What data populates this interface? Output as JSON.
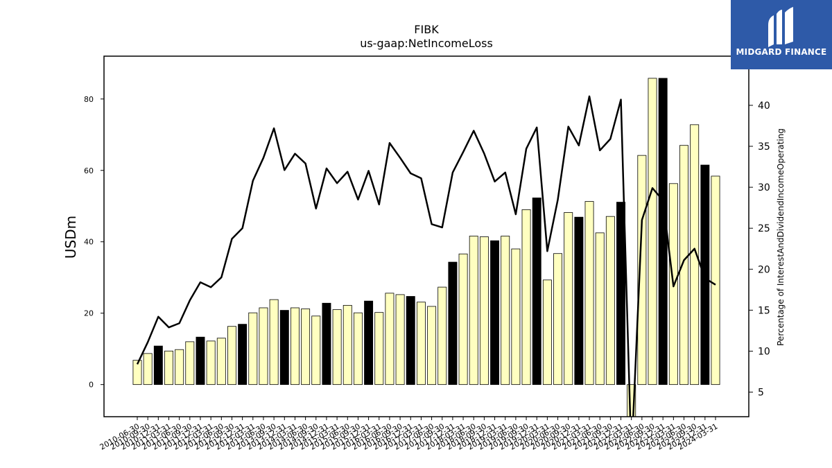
{
  "logo": {
    "text": "MIDGARD FINANCE"
  },
  "chart_data": {
    "type": "bar",
    "title": "FIBK",
    "subtitle": "us-gaap:NetIncomeLoss",
    "ylabel": "USDm",
    "ylabel_right": "Percentage of InterestAndDividendIncomeOperating",
    "ylim": [
      -9,
      92
    ],
    "ylim_right": [
      2,
      46
    ],
    "yticks": [
      0,
      20,
      40,
      60,
      80
    ],
    "yticks_right": [
      5,
      10,
      15,
      20,
      25,
      30,
      35,
      40
    ],
    "grid": false,
    "categories": [
      "2010-06-30",
      "2010-09-30",
      "2010-12-31",
      "2011-03-31",
      "2011-06-30",
      "2011-09-30",
      "2011-12-31",
      "2012-03-31",
      "2012-06-30",
      "2012-09-30",
      "2012-12-31",
      "2013-03-31",
      "2013-06-30",
      "2013-09-30",
      "2013-12-31",
      "2014-03-31",
      "2014-06-30",
      "2014-09-30",
      "2014-12-31",
      "2015-03-31",
      "2015-06-30",
      "2015-09-30",
      "2015-12-31",
      "2016-03-31",
      "2016-06-30",
      "2016-09-30",
      "2016-12-31",
      "2017-03-31",
      "2017-06-30",
      "2017-09-30",
      "2017-12-31",
      "2018-03-31",
      "2018-06-30",
      "2018-09-30",
      "2018-12-31",
      "2019-03-31",
      "2019-06-30",
      "2019-09-30",
      "2019-12-31",
      "2020-03-31",
      "2020-06-30",
      "2020-09-30",
      "2020-12-31",
      "2021-03-31",
      "2021-06-30",
      "2021-09-30",
      "2021-12-31",
      "2022-03-31",
      "2022-06-30",
      "2022-09-30",
      "2022-12-31",
      "2023-03-31",
      "2023-06-30",
      "2023-09-30",
      "2023-12-31",
      "2024-03-31"
    ],
    "series": [
      {
        "name": "",
        "kind": "bar",
        "values": [
          6.8,
          8.7,
          10.8,
          9.4,
          9.8,
          12.0,
          13.3,
          12.2,
          13.0,
          16.3,
          16.9,
          20.1,
          21.5,
          23.8,
          20.8,
          21.5,
          21.2,
          19.2,
          22.8,
          21.0,
          22.2,
          20.1,
          23.4,
          20.2,
          25.6,
          25.2,
          24.7,
          23.1,
          21.9,
          27.3,
          34.3,
          36.6,
          41.6,
          41.4,
          40.3,
          41.6,
          38.0,
          49.0,
          52.3,
          29.3,
          36.7,
          48.2,
          46.9,
          51.3,
          42.5,
          47.1,
          51.1,
          -12.0,
          64.2,
          85.8,
          85.8,
          56.3,
          67.0,
          72.8,
          61.5,
          58.4
        ],
        "colors": [
          "#ffffc0",
          "#ffffc0",
          "#000000",
          "#ffffc0",
          "#ffffc0",
          "#ffffc0",
          "#000000",
          "#ffffc0",
          "#ffffc0",
          "#ffffc0",
          "#000000",
          "#ffffc0",
          "#ffffc0",
          "#ffffc0",
          "#000000",
          "#ffffc0",
          "#ffffc0",
          "#ffffc0",
          "#000000",
          "#ffffc0",
          "#ffffc0",
          "#ffffc0",
          "#000000",
          "#ffffc0",
          "#ffffc0",
          "#ffffc0",
          "#000000",
          "#ffffc0",
          "#ffffc0",
          "#ffffc0",
          "#000000",
          "#ffffc0",
          "#ffffc0",
          "#ffffc0",
          "#000000",
          "#ffffc0",
          "#ffffc0",
          "#ffffc0",
          "#000000",
          "#ffffc0",
          "#ffffc0",
          "#ffffc0",
          "#000000",
          "#ffffc0",
          "#ffffc0",
          "#ffffc0",
          "#000000",
          "#ffffc0",
          "#ffffc0",
          "#ffffc0",
          "#000000",
          "#ffffc0",
          "#ffffc0",
          "#ffffc0",
          "#000000",
          "#ffffc0"
        ]
      },
      {
        "name": "",
        "kind": "line",
        "axis": "right",
        "color": "#000000",
        "values": [
          8.4,
          11.1,
          14.2,
          12.9,
          13.4,
          16.2,
          18.4,
          17.8,
          19.0,
          23.7,
          25.0,
          30.8,
          33.6,
          37.2,
          32.1,
          34.1,
          32.9,
          27.4,
          32.3,
          30.5,
          31.9,
          28.5,
          32.0,
          27.9,
          35.4,
          33.6,
          31.7,
          31.1,
          25.5,
          25.1,
          31.8,
          34.3,
          36.9,
          34.1,
          30.7,
          31.8,
          26.7,
          34.7,
          37.3,
          22.2,
          28.5,
          37.4,
          35.1,
          41.1,
          34.5,
          35.9,
          40.7,
          -3.0,
          26.0,
          29.9,
          28.4,
          17.9,
          21.1,
          22.5,
          18.9,
          18.1
        ]
      }
    ]
  }
}
